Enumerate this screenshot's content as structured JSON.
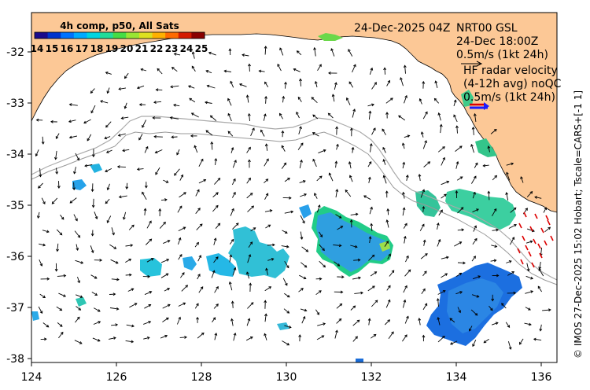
{
  "colorbar": {
    "title": "4h comp, p50, All Sats",
    "labels": [
      "14",
      "15",
      "16",
      "17",
      "18",
      "19",
      "20",
      "21",
      "22",
      "23",
      "24",
      "25"
    ],
    "colors": [
      "#1a0a8c",
      "#0033cc",
      "#0072ff",
      "#00aaff",
      "#00d4e0",
      "#22dd99",
      "#44dd44",
      "#99e633",
      "#dde020",
      "#ffb000",
      "#ff6a00",
      "#d41a00",
      "#8a0000"
    ]
  },
  "header": {
    "date": "24-Dec-2025 04Z",
    "model_line1": "NRT00 GSL",
    "model_line2": "24-Dec 18:00Z",
    "model_scale": "0.5m/s (1kt 24h)",
    "radar_line1": "HF radar velocity",
    "radar_line2": "(4-12h avg) noQC",
    "radar_scale": "0.5m/s (1kt 24h)"
  },
  "axes": {
    "x_ticks": [
      "124",
      "126",
      "128",
      "130",
      "132",
      "134",
      "136"
    ],
    "y_ticks": [
      "-32",
      "-33",
      "-34",
      "-35",
      "-36",
      "-37",
      "-38"
    ],
    "x_range": [
      124,
      136.5
    ],
    "y_range": [
      -31.3,
      -38.1
    ]
  },
  "credit": "© IMOS 27-Dec-2025 15:02 Hobart; Tscale=CARS+[-1 1]",
  "colors": {
    "land": "#fcc896",
    "sea": "#ffffff",
    "radar_vector": "#dd0000",
    "scale_arrow_blue": "#1a1aff"
  }
}
